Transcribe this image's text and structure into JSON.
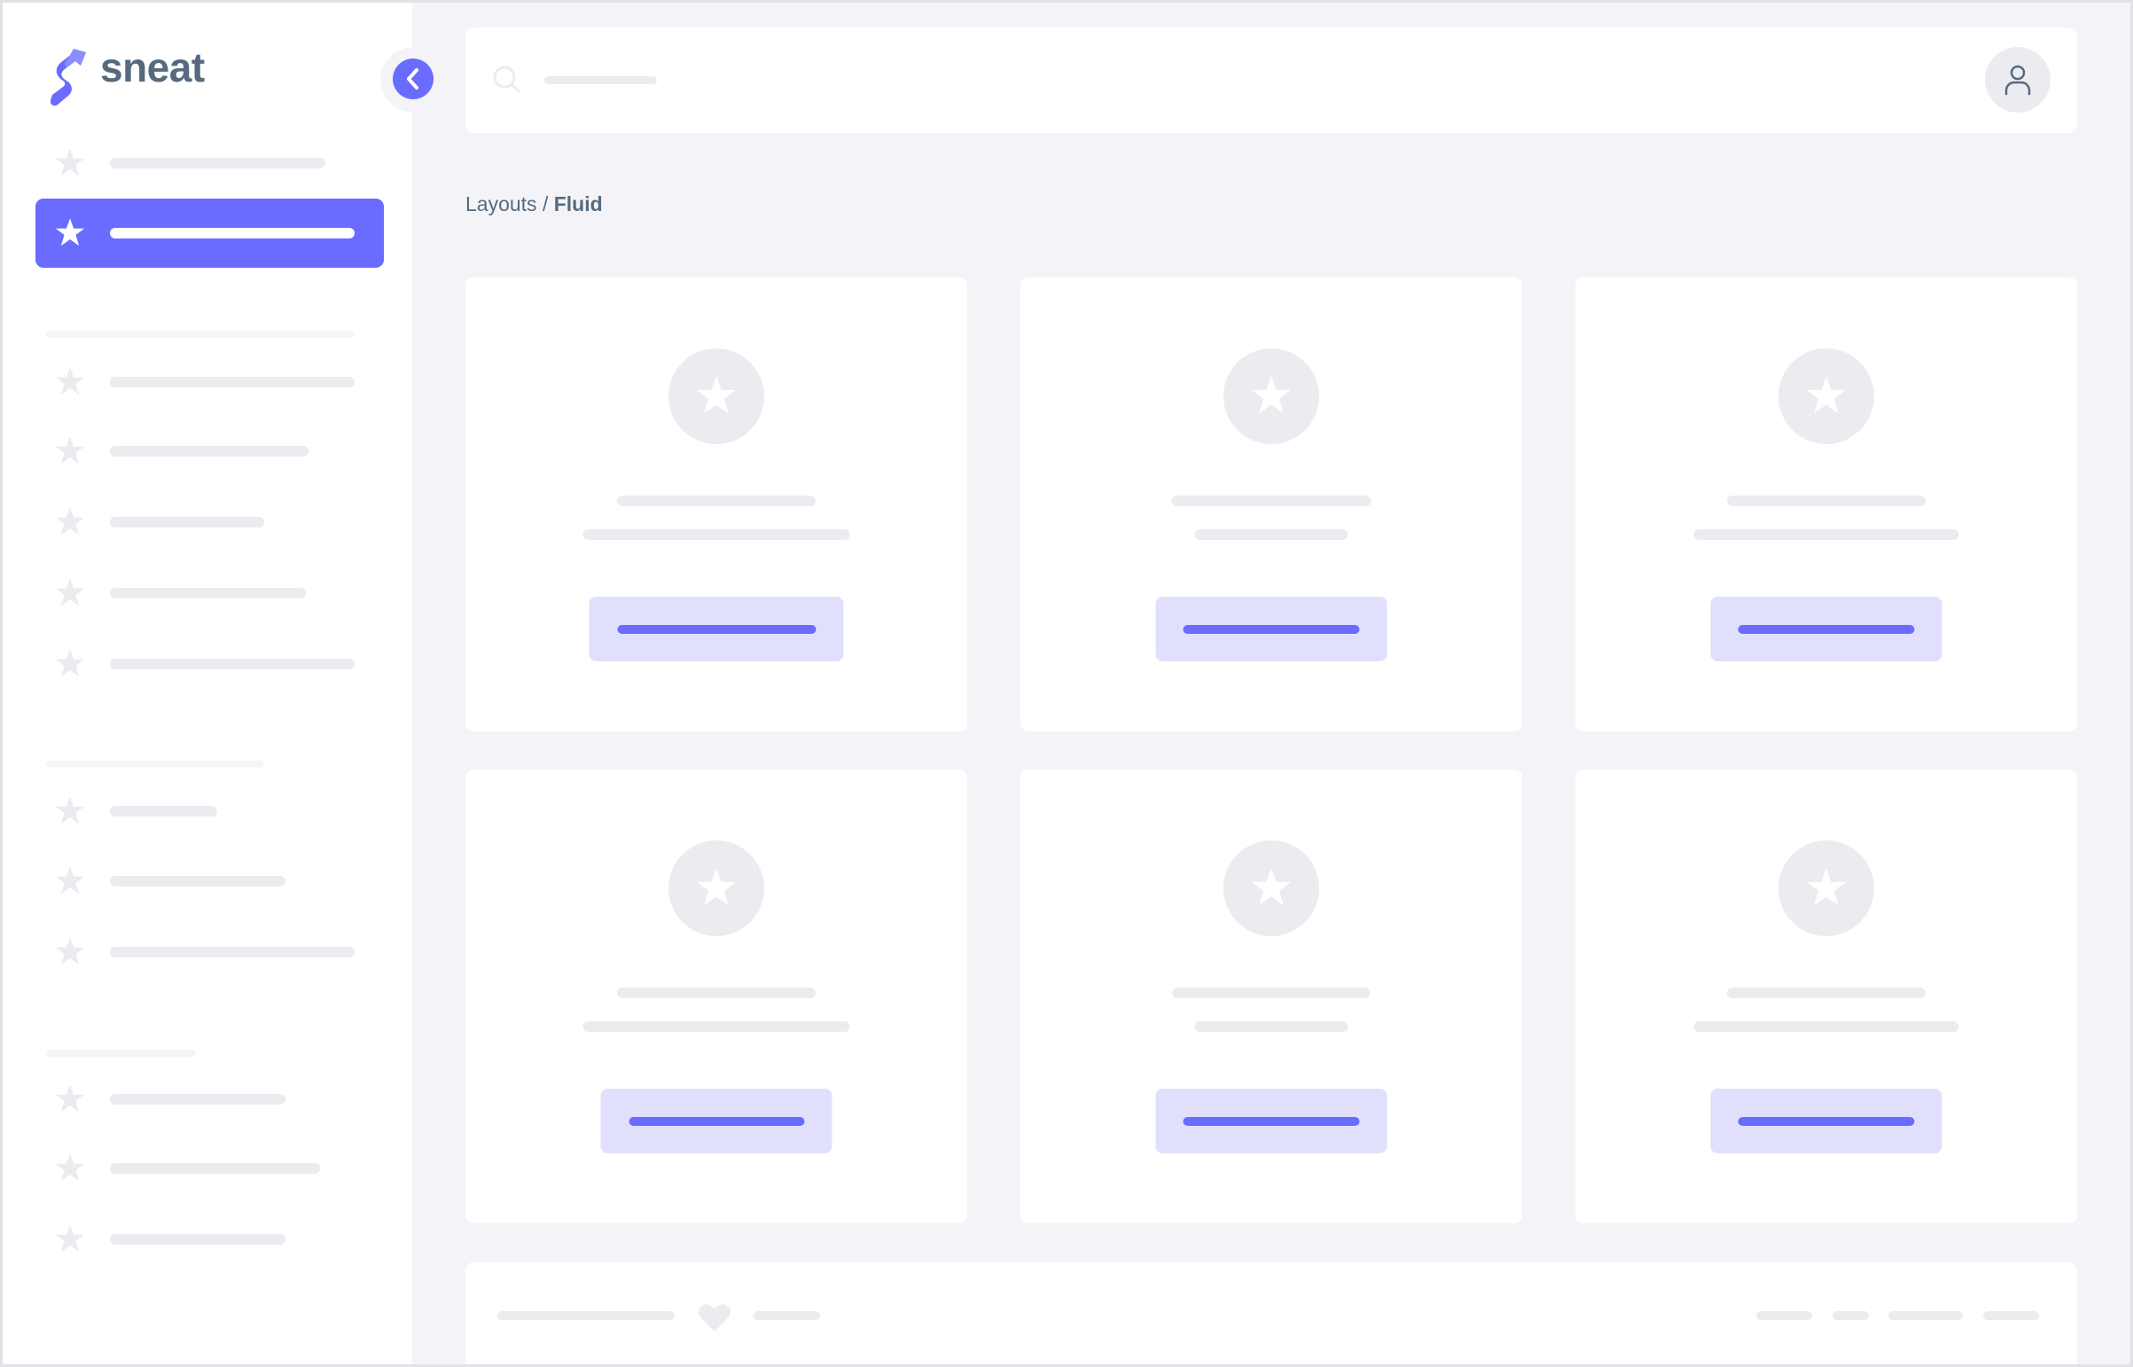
{
  "brand": {
    "name": "sneat",
    "primary_color": "#696cff",
    "text_color": "#566a7f",
    "skeleton_color": "#ebecf0"
  },
  "breadcrumb": {
    "parent": "Layouts",
    "separator": "/",
    "current": "Fluid"
  },
  "icons": {
    "logo": "sneat-logo",
    "collapse": "chevron-left-icon",
    "search": "search-icon",
    "avatar": "user-icon",
    "nav": "star-icon",
    "card": "star-icon",
    "footer": "heart-icon"
  }
}
